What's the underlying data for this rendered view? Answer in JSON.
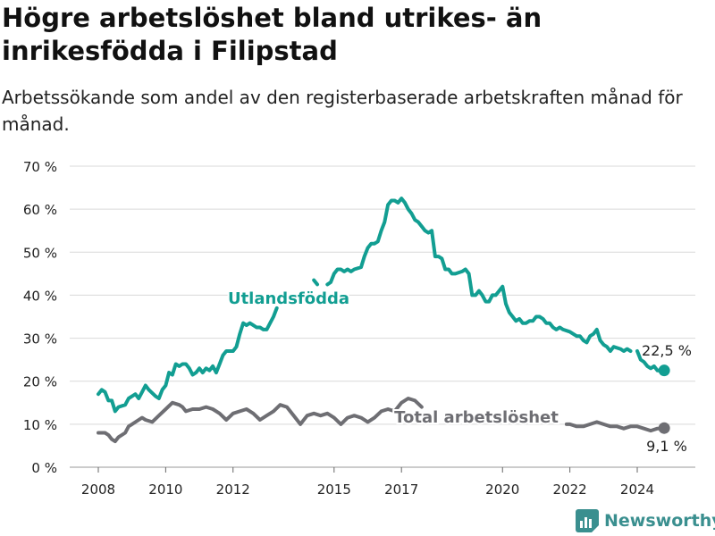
{
  "title": "Högre arbetslöshet bland utrikes- än inrikesfödda i Filipstad",
  "subtitle": "Arbetssökande som andel av den registerbaserade arbetskraften månad för månad.",
  "brand": "Newsworthy",
  "colors": {
    "foreign": "#129e92",
    "total": "#6e6e73",
    "grid": "#d9d9d9",
    "axis": "#666666",
    "text": "#222222"
  },
  "chart_data": {
    "type": "line",
    "ylim": [
      0,
      70
    ],
    "xlim": [
      2007.5,
      2025.8
    ],
    "y_ticks": [
      0,
      10,
      20,
      30,
      40,
      50,
      60,
      70
    ],
    "y_tick_labels": [
      "0 %",
      "10 %",
      "20 %",
      "30 %",
      "40 %",
      "50 %",
      "60 %",
      "70 %"
    ],
    "x_ticks": [
      2008,
      2010,
      2012,
      2015,
      2017,
      2020,
      2022,
      2024
    ],
    "x_tick_labels": [
      "2008",
      "2010",
      "2012",
      "2015",
      "2017",
      "2020",
      "2022",
      "2024"
    ],
    "grid": true,
    "series": [
      {
        "name": "Utlandsfödda",
        "end_label": "22,5 %",
        "points": [
          [
            2008.0,
            17
          ],
          [
            2008.1,
            18
          ],
          [
            2008.2,
            17.5
          ],
          [
            2008.3,
            15.5
          ],
          [
            2008.4,
            15.5
          ],
          [
            2008.5,
            13
          ],
          [
            2008.6,
            14
          ],
          [
            2008.8,
            14.5
          ],
          [
            2008.9,
            16
          ],
          [
            2009.0,
            16.5
          ],
          [
            2009.1,
            17
          ],
          [
            2009.2,
            16
          ],
          [
            2009.3,
            17.5
          ],
          [
            2009.4,
            19
          ],
          [
            2009.5,
            18
          ],
          [
            2009.7,
            16.5
          ],
          [
            2009.8,
            16
          ],
          [
            2009.9,
            18
          ],
          [
            2010.0,
            19
          ],
          [
            2010.1,
            22
          ],
          [
            2010.2,
            21.5
          ],
          [
            2010.3,
            24
          ],
          [
            2010.4,
            23.5
          ],
          [
            2010.5,
            24
          ],
          [
            2010.6,
            24
          ],
          [
            2010.7,
            23
          ],
          [
            2010.8,
            21.5
          ],
          [
            2010.9,
            22
          ],
          [
            2011.0,
            23
          ],
          [
            2011.1,
            22
          ],
          [
            2011.2,
            23
          ],
          [
            2011.3,
            22.5
          ],
          [
            2011.4,
            23.5
          ],
          [
            2011.5,
            22
          ],
          [
            2011.6,
            24
          ],
          [
            2011.7,
            26
          ],
          [
            2011.8,
            27
          ],
          [
            2012.0,
            27
          ],
          [
            2012.1,
            28
          ],
          [
            2012.2,
            31
          ],
          [
            2012.3,
            33.5
          ],
          [
            2012.4,
            33
          ],
          [
            2012.5,
            33.5
          ],
          [
            2012.6,
            33
          ],
          [
            2012.7,
            32.5
          ],
          [
            2012.8,
            32.5
          ],
          [
            2012.9,
            32
          ],
          [
            2013.0,
            32
          ],
          [
            2013.1,
            33.5
          ],
          [
            2013.2,
            35
          ],
          [
            2013.3,
            37
          ],
          null,
          [
            2014.4,
            43.5
          ],
          [
            2014.5,
            42.5
          ],
          null,
          [
            2014.8,
            42.5
          ],
          [
            2014.9,
            43
          ],
          [
            2015.0,
            45
          ],
          [
            2015.1,
            46
          ],
          [
            2015.2,
            46
          ],
          [
            2015.3,
            45.5
          ],
          [
            2015.4,
            46
          ],
          [
            2015.5,
            45.5
          ],
          [
            2015.6,
            46
          ],
          [
            2015.8,
            46.5
          ],
          [
            2015.9,
            49
          ],
          [
            2016.0,
            51
          ],
          [
            2016.1,
            52
          ],
          [
            2016.2,
            52
          ],
          [
            2016.3,
            52.5
          ],
          [
            2016.4,
            55
          ],
          [
            2016.5,
            57
          ],
          [
            2016.6,
            61
          ],
          [
            2016.7,
            62
          ],
          [
            2016.8,
            62
          ],
          [
            2016.9,
            61.5
          ],
          [
            2017.0,
            62.5
          ],
          [
            2017.1,
            61.5
          ],
          [
            2017.2,
            60
          ],
          [
            2017.3,
            59
          ],
          [
            2017.4,
            57.5
          ],
          [
            2017.5,
            57
          ],
          [
            2017.6,
            56
          ],
          [
            2017.7,
            55
          ],
          [
            2017.8,
            54.5
          ],
          [
            2017.9,
            55
          ],
          [
            2018.0,
            49
          ],
          [
            2018.1,
            49
          ],
          [
            2018.2,
            48.5
          ],
          [
            2018.3,
            46
          ],
          [
            2018.4,
            46
          ],
          [
            2018.5,
            45
          ],
          [
            2018.6,
            45
          ],
          [
            2018.8,
            45.5
          ],
          [
            2018.9,
            46
          ],
          [
            2019.0,
            45
          ],
          [
            2019.1,
            40
          ],
          [
            2019.2,
            40
          ],
          [
            2019.3,
            41
          ],
          [
            2019.4,
            40
          ],
          [
            2019.5,
            38.5
          ],
          [
            2019.6,
            38.5
          ],
          [
            2019.7,
            40
          ],
          [
            2019.8,
            40
          ],
          [
            2019.9,
            41
          ],
          [
            2020.0,
            42
          ],
          [
            2020.1,
            38
          ],
          [
            2020.2,
            36
          ],
          [
            2020.3,
            35
          ],
          [
            2020.4,
            34
          ],
          [
            2020.5,
            34.5
          ],
          [
            2020.6,
            33.5
          ],
          [
            2020.7,
            33.5
          ],
          [
            2020.8,
            34
          ],
          [
            2020.9,
            34
          ],
          [
            2021.0,
            35
          ],
          [
            2021.1,
            35
          ],
          [
            2021.2,
            34.5
          ],
          [
            2021.3,
            33.5
          ],
          [
            2021.4,
            33.5
          ],
          [
            2021.5,
            32.5
          ],
          [
            2021.6,
            32
          ],
          [
            2021.7,
            32.5
          ],
          [
            2021.8,
            32
          ],
          [
            2022.0,
            31.5
          ],
          [
            2022.1,
            31
          ],
          [
            2022.2,
            30.5
          ],
          [
            2022.3,
            30.5
          ],
          [
            2022.4,
            29.5
          ],
          [
            2022.5,
            29
          ],
          [
            2022.6,
            30.5
          ],
          [
            2022.7,
            31
          ],
          [
            2022.8,
            32
          ],
          [
            2022.9,
            29.5
          ],
          [
            2023.0,
            28.5
          ],
          [
            2023.1,
            28
          ],
          [
            2023.2,
            27
          ],
          [
            2023.3,
            28
          ],
          [
            2023.5,
            27.5
          ],
          [
            2023.6,
            27
          ],
          [
            2023.7,
            27.5
          ],
          [
            2023.8,
            27
          ],
          null,
          [
            2024.0,
            27
          ],
          [
            2024.1,
            25
          ],
          [
            2024.2,
            24.5
          ],
          [
            2024.3,
            23.5
          ],
          [
            2024.4,
            23
          ],
          [
            2024.5,
            23.5
          ],
          [
            2024.6,
            22.5
          ],
          [
            2024.7,
            22.5
          ],
          [
            2024.8,
            22.5
          ]
        ]
      },
      {
        "name": "Total arbetslöshet",
        "end_label": "9,1 %",
        "points": [
          [
            2008.0,
            8
          ],
          [
            2008.2,
            8
          ],
          [
            2008.3,
            7.5
          ],
          [
            2008.4,
            6.5
          ],
          [
            2008.5,
            6
          ],
          [
            2008.6,
            7
          ],
          [
            2008.8,
            8
          ],
          [
            2008.9,
            9.5
          ],
          [
            2009.0,
            10
          ],
          [
            2009.2,
            11
          ],
          [
            2009.3,
            11.5
          ],
          [
            2009.4,
            11
          ],
          [
            2009.6,
            10.5
          ],
          [
            2009.8,
            12
          ],
          [
            2010.0,
            13.5
          ],
          [
            2010.2,
            15
          ],
          [
            2010.4,
            14.5
          ],
          [
            2010.5,
            14
          ],
          [
            2010.6,
            13
          ],
          [
            2010.8,
            13.5
          ],
          [
            2011.0,
            13.5
          ],
          [
            2011.2,
            14
          ],
          [
            2011.4,
            13.5
          ],
          [
            2011.6,
            12.5
          ],
          [
            2011.8,
            11
          ],
          [
            2012.0,
            12.5
          ],
          [
            2012.2,
            13
          ],
          [
            2012.4,
            13.5
          ],
          [
            2012.6,
            12.5
          ],
          [
            2012.8,
            11
          ],
          [
            2013.0,
            12
          ],
          [
            2013.2,
            13
          ],
          [
            2013.4,
            14.5
          ],
          [
            2013.6,
            14
          ],
          [
            2013.8,
            12
          ],
          [
            2014.0,
            10
          ],
          [
            2014.2,
            12
          ],
          [
            2014.4,
            12.5
          ],
          [
            2014.6,
            12
          ],
          [
            2014.8,
            12.5
          ],
          [
            2015.0,
            11.5
          ],
          [
            2015.2,
            10
          ],
          [
            2015.4,
            11.5
          ],
          [
            2015.6,
            12
          ],
          [
            2015.8,
            11.5
          ],
          [
            2016.0,
            10.5
          ],
          [
            2016.2,
            11.5
          ],
          [
            2016.4,
            13
          ],
          [
            2016.6,
            13.5
          ],
          [
            2016.8,
            13
          ],
          [
            2017.0,
            15
          ],
          [
            2017.2,
            16
          ],
          [
            2017.4,
            15.5
          ],
          [
            2017.6,
            14
          ],
          null,
          [
            2021.9,
            10
          ],
          [
            2022.0,
            10
          ],
          [
            2022.2,
            9.5
          ],
          [
            2022.4,
            9.5
          ],
          [
            2022.6,
            10
          ],
          [
            2022.8,
            10.5
          ],
          [
            2023.0,
            10
          ],
          [
            2023.2,
            9.5
          ],
          [
            2023.4,
            9.5
          ],
          [
            2023.6,
            9
          ],
          [
            2023.8,
            9.5
          ],
          [
            2024.0,
            9.5
          ],
          [
            2024.2,
            9
          ],
          [
            2024.4,
            8.5
          ],
          [
            2024.6,
            9
          ],
          [
            2024.8,
            9.1
          ]
        ]
      }
    ]
  }
}
